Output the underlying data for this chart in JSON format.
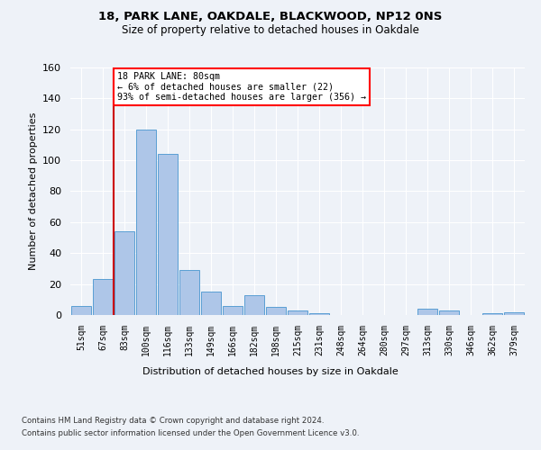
{
  "title1": "18, PARK LANE, OAKDALE, BLACKWOOD, NP12 0NS",
  "title2": "Size of property relative to detached houses in Oakdale",
  "xlabel": "Distribution of detached houses by size in Oakdale",
  "ylabel": "Number of detached properties",
  "categories": [
    "51sqm",
    "67sqm",
    "83sqm",
    "100sqm",
    "116sqm",
    "133sqm",
    "149sqm",
    "166sqm",
    "182sqm",
    "198sqm",
    "215sqm",
    "231sqm",
    "248sqm",
    "264sqm",
    "280sqm",
    "297sqm",
    "313sqm",
    "330sqm",
    "346sqm",
    "362sqm",
    "379sqm"
  ],
  "values": [
    6,
    23,
    54,
    120,
    104,
    29,
    15,
    6,
    13,
    5,
    3,
    1,
    0,
    0,
    0,
    0,
    4,
    3,
    0,
    1,
    2
  ],
  "bar_color": "#aec6e8",
  "bar_edge_color": "#5a9fd4",
  "vline_index": 1.5,
  "annotation_text": "18 PARK LANE: 80sqm\n← 6% of detached houses are smaller (22)\n93% of semi-detached houses are larger (356) →",
  "annotation_box_color": "white",
  "annotation_box_edge_color": "red",
  "vline_color": "#cc0000",
  "ylim": [
    0,
    160
  ],
  "yticks": [
    0,
    20,
    40,
    60,
    80,
    100,
    120,
    140,
    160
  ],
  "footer1": "Contains HM Land Registry data © Crown copyright and database right 2024.",
  "footer2": "Contains public sector information licensed under the Open Government Licence v3.0.",
  "bg_color": "#eef2f8",
  "plot_bg_color": "#eef2f8"
}
